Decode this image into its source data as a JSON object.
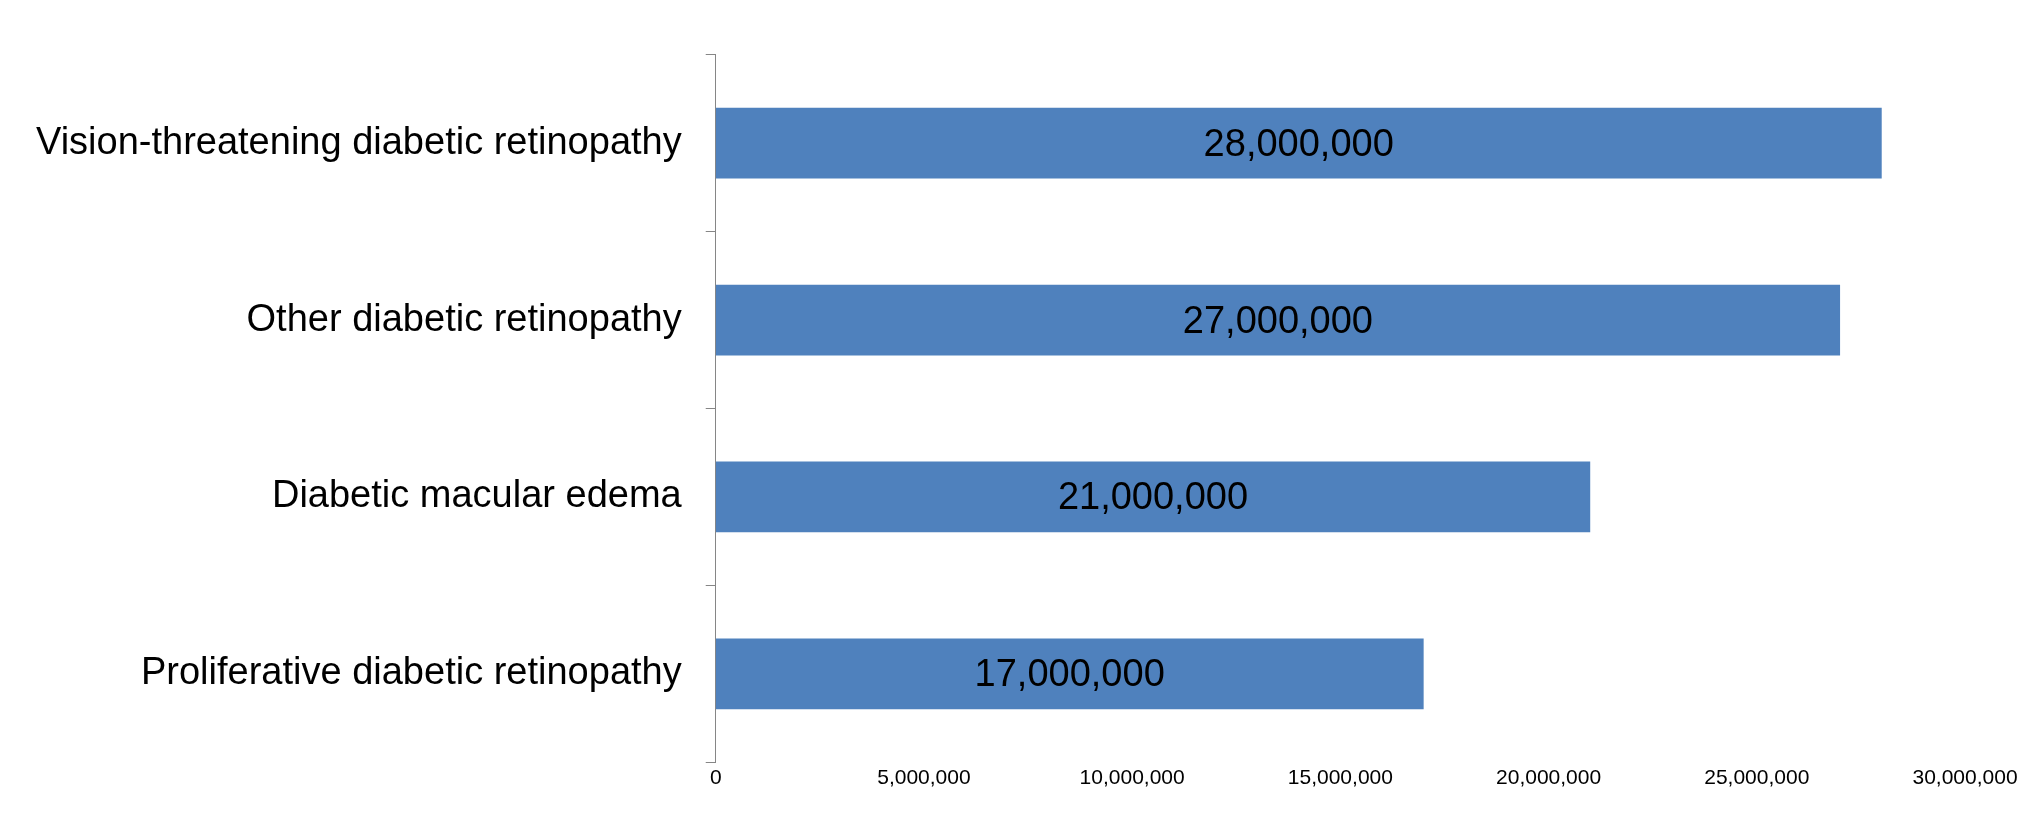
{
  "chart_data": {
    "type": "bar",
    "orientation": "horizontal",
    "categories": [
      "Vision-threatening diabetic retinopathy",
      "Other diabetic retinopathy",
      "Diabetic macular edema",
      "Proliferative diabetic retinopathy"
    ],
    "values": [
      28000000,
      27000000,
      21000000,
      17000000
    ],
    "value_labels": [
      "28,000,000",
      "27,000,000",
      "21,000,000",
      "17,000,000"
    ],
    "color": "#4f81bd",
    "xlim": [
      0,
      30000000
    ],
    "xticks": [
      {
        "value": 0,
        "label": "0"
      },
      {
        "value": 5000000,
        "label": "5,000,000"
      },
      {
        "value": 10000000,
        "label": "10,000,000"
      },
      {
        "value": 15000000,
        "label": "15,000,000"
      },
      {
        "value": 20000000,
        "label": "20,000,000"
      },
      {
        "value": 25000000,
        "label": "25,000,000"
      },
      {
        "value": 30000000,
        "label": "30,000,000"
      }
    ],
    "grid": false,
    "legend": false
  }
}
